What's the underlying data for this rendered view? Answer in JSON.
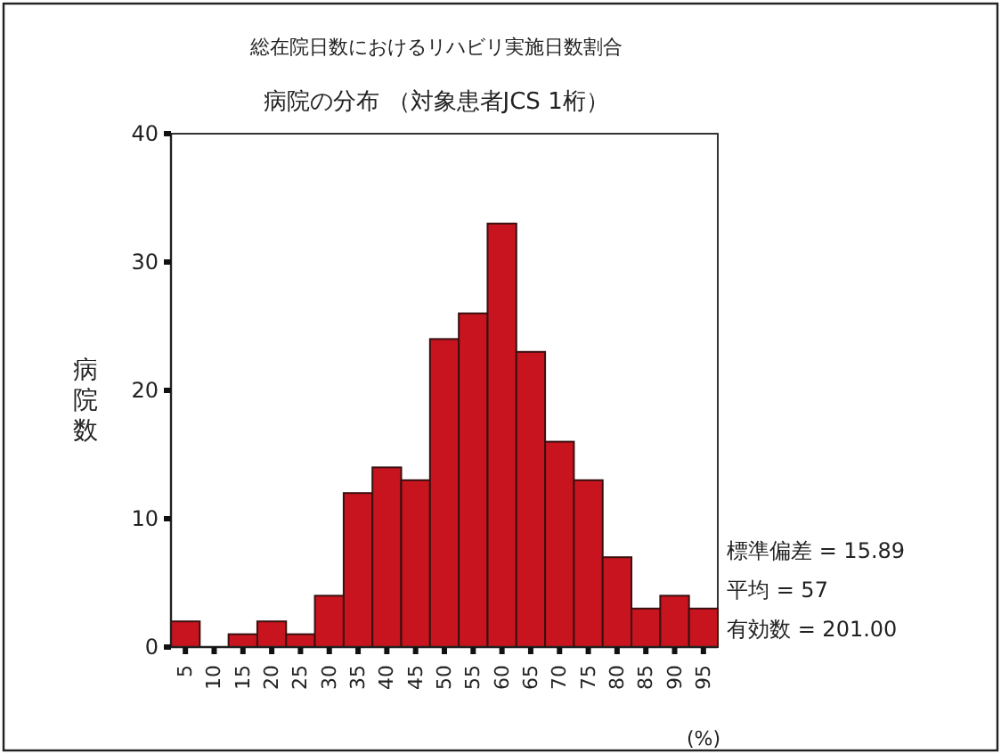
{
  "chart_data": {
    "type": "histogram",
    "title": "総在院日数におけるリハビリ実施日数割合",
    "subtitle": "病院の分布 （対象患者JCS 1桁）",
    "xlabel": "(%)",
    "ylabel": "病院数",
    "bins": [
      2.5,
      7.5,
      12.5,
      17.5,
      22.5,
      27.5,
      32.5,
      37.5,
      42.5,
      47.5,
      52.5,
      57.5,
      62.5,
      67.5,
      72.5,
      77.5,
      82.5,
      87.5,
      92.5,
      97.5
    ],
    "values": [
      2,
      0,
      1,
      2,
      1,
      4,
      12,
      14,
      13,
      24,
      26,
      33,
      23,
      16,
      13,
      7,
      3,
      4,
      3
    ],
    "color": "#c8141e",
    "xlim": [
      2.5,
      97.5
    ],
    "xticks": [
      5,
      10,
      15,
      20,
      25,
      30,
      35,
      40,
      45,
      50,
      55,
      60,
      65,
      70,
      75,
      80,
      85,
      90,
      95
    ],
    "ylim": [
      0,
      40
    ],
    "yticks": [
      0,
      10,
      20,
      30,
      40
    ],
    "annotations": [
      "標準偏差 = 15.89",
      "平均 = 57",
      "有効数 = 201.00"
    ]
  }
}
